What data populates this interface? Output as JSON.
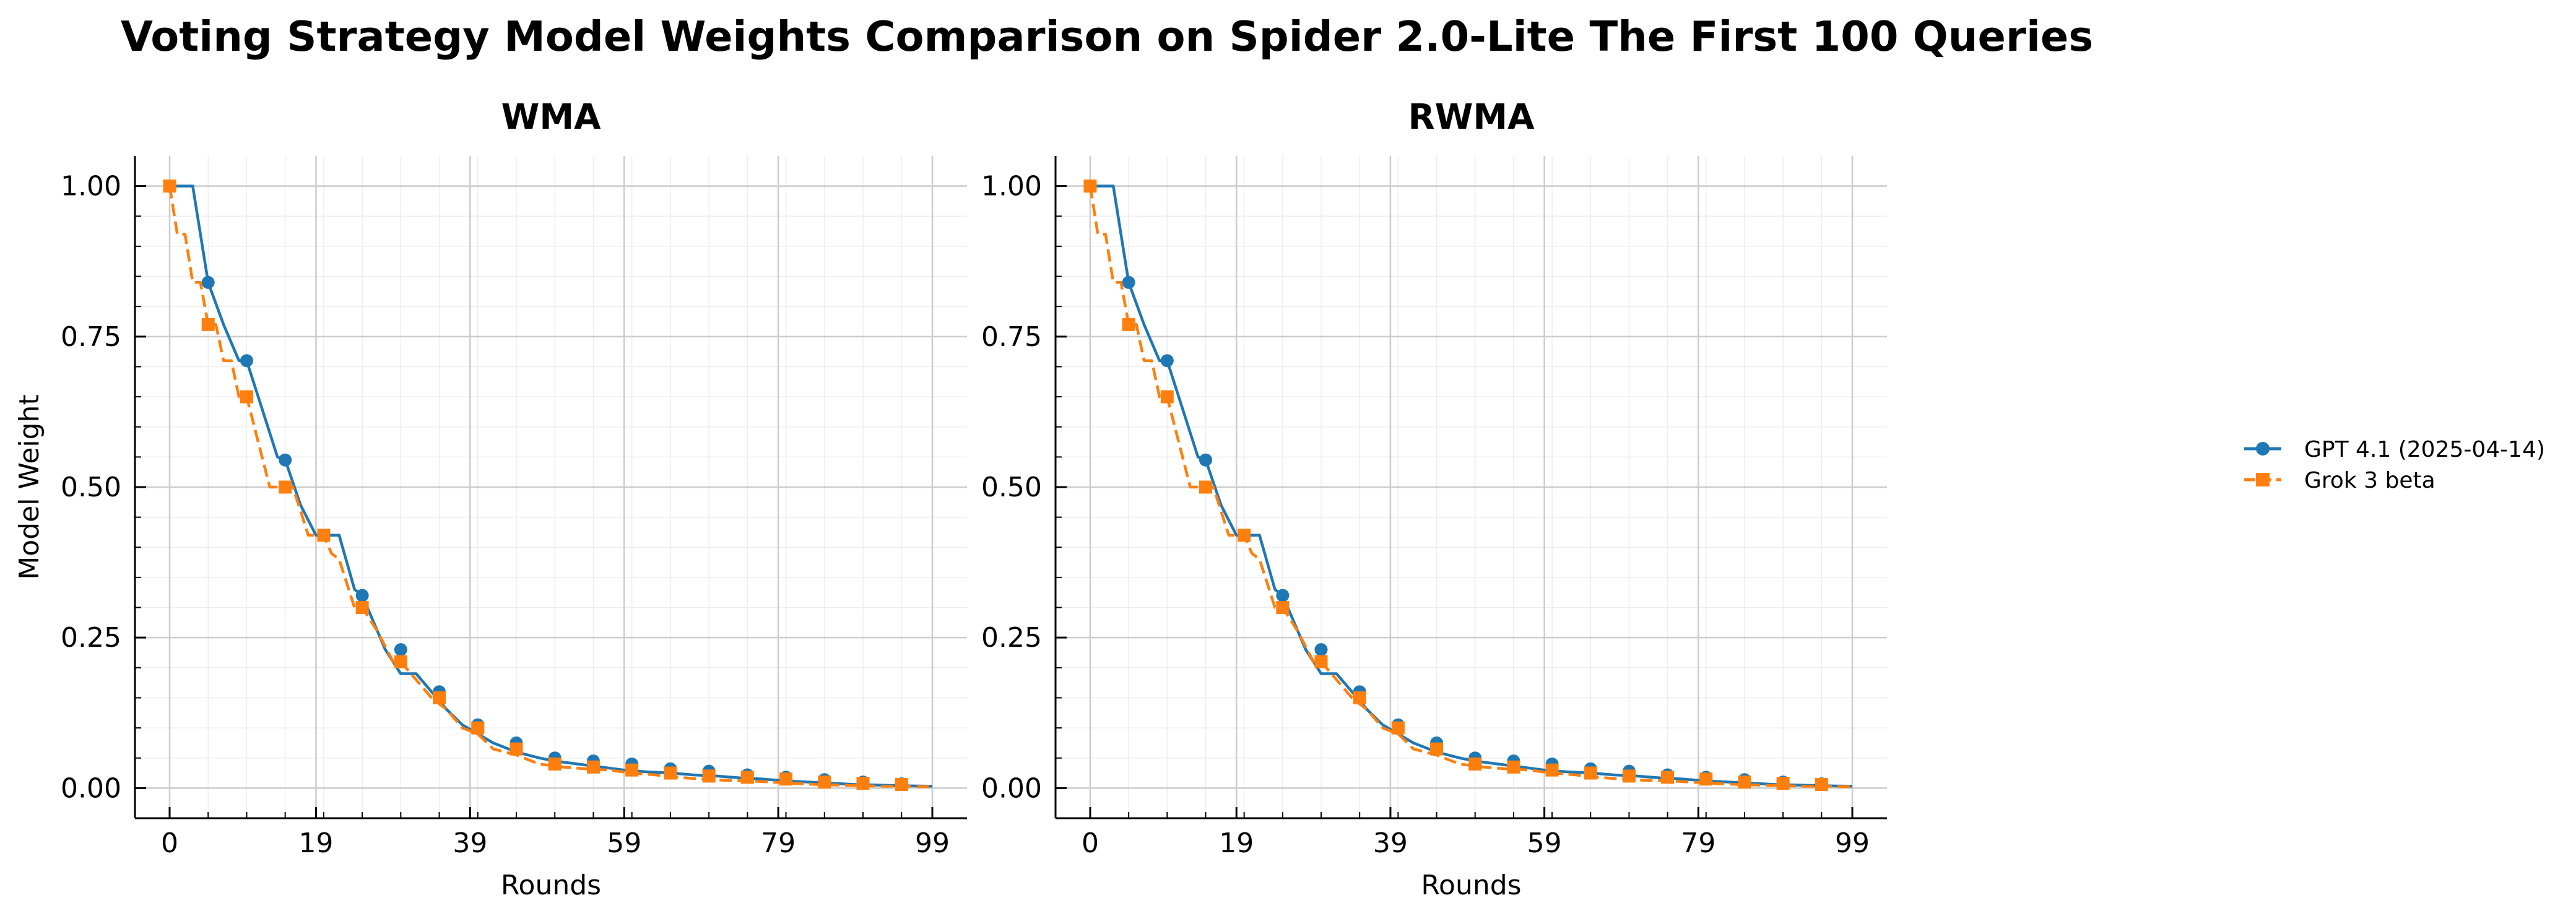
{
  "title": "Voting Strategy Model Weights Comparison on Spider 2.0-Lite The First 100 Queries",
  "ylabel": "Model Weight",
  "xlabel": "Rounds",
  "xticks": [
    0,
    19,
    39,
    59,
    79,
    99
  ],
  "yticks": [
    "0.00",
    "0.25",
    "0.50",
    "0.75",
    "1.00"
  ],
  "xlim": [
    -4.5,
    103.5
  ],
  "ylim": [
    -0.05,
    1.05
  ],
  "legend": [
    {
      "label": "GPT 4.1 (2025-04-14)",
      "color": "#1f77b4",
      "marker": "circle",
      "linestyle": "solid"
    },
    {
      "label": "Grok 3 beta",
      "color": "#ff7f0e",
      "marker": "square",
      "linestyle": "dashed"
    }
  ],
  "chart_data": [
    {
      "type": "line",
      "title": "WMA",
      "xlabel": "Rounds",
      "ylabel": "Model Weight",
      "xlim": [
        -4.5,
        103.5
      ],
      "ylim": [
        -0.05,
        1.05
      ],
      "series": [
        {
          "name": "GPT 4.1 (2025-04-14)",
          "x": [
            0,
            3,
            5,
            7,
            9,
            10,
            12,
            14,
            15,
            17,
            19,
            20,
            22,
            24,
            25,
            28,
            30,
            32,
            34,
            36,
            38,
            40,
            42,
            45,
            48,
            50,
            53,
            56,
            59,
            62,
            65,
            68,
            71,
            74,
            77,
            80,
            83,
            86,
            89,
            92,
            95,
            99
          ],
          "y": [
            1.0,
            1.0,
            0.84,
            0.77,
            0.71,
            0.71,
            0.63,
            0.55,
            0.545,
            0.47,
            0.42,
            0.42,
            0.42,
            0.33,
            0.32,
            0.23,
            0.19,
            0.19,
            0.16,
            0.13,
            0.105,
            0.09,
            0.075,
            0.06,
            0.05,
            0.045,
            0.04,
            0.035,
            0.03,
            0.027,
            0.025,
            0.022,
            0.02,
            0.017,
            0.015,
            0.012,
            0.01,
            0.008,
            0.006,
            0.005,
            0.004,
            0.003
          ],
          "markers_x": [
            5,
            10,
            15,
            20,
            25,
            30,
            35,
            40,
            45,
            50,
            55,
            60,
            65,
            70,
            75,
            80,
            85,
            90,
            95
          ],
          "markers_y": [
            0.84,
            0.71,
            0.545,
            0.42,
            0.32,
            0.23,
            0.16,
            0.105,
            0.075,
            0.05,
            0.045,
            0.04,
            0.032,
            0.028,
            0.022,
            0.018,
            0.014,
            0.01,
            0.007
          ]
        },
        {
          "name": "Grok 3 beta",
          "x": [
            0,
            1,
            2,
            3,
            4,
            5,
            6,
            7,
            8,
            9,
            10,
            11,
            12,
            13,
            14,
            15,
            16,
            17,
            18,
            19,
            20,
            21,
            22,
            23,
            24,
            25,
            27,
            29,
            30,
            32,
            34,
            36,
            38,
            40,
            42,
            45,
            48,
            51,
            54,
            57,
            60,
            63,
            66,
            69,
            72,
            75,
            78,
            81,
            84,
            87,
            90,
            93,
            96,
            99
          ],
          "y": [
            1.0,
            0.92,
            0.92,
            0.84,
            0.84,
            0.77,
            0.77,
            0.71,
            0.71,
            0.65,
            0.65,
            0.6,
            0.55,
            0.5,
            0.5,
            0.5,
            0.5,
            0.46,
            0.42,
            0.42,
            0.42,
            0.39,
            0.38,
            0.34,
            0.3,
            0.3,
            0.26,
            0.21,
            0.21,
            0.18,
            0.15,
            0.13,
            0.1,
            0.09,
            0.065,
            0.055,
            0.04,
            0.035,
            0.032,
            0.03,
            0.025,
            0.022,
            0.018,
            0.015,
            0.013,
            0.012,
            0.01,
            0.008,
            0.006,
            0.005,
            0.004,
            0.003,
            0.003,
            0.002
          ],
          "markers_x": [
            0,
            5,
            10,
            15,
            20,
            25,
            30,
            35,
            40,
            45,
            50,
            55,
            60,
            65,
            70,
            75,
            80,
            85,
            90,
            95
          ],
          "markers_y": [
            1.0,
            0.77,
            0.65,
            0.5,
            0.42,
            0.3,
            0.21,
            0.15,
            0.1,
            0.065,
            0.04,
            0.035,
            0.03,
            0.025,
            0.02,
            0.018,
            0.015,
            0.01,
            0.008,
            0.006
          ]
        }
      ]
    },
    {
      "type": "line",
      "title": "RWMA",
      "xlabel": "Rounds",
      "ylabel": "",
      "xlim": [
        -4.5,
        103.5
      ],
      "ylim": [
        -0.05,
        1.05
      ],
      "series": [
        {
          "name": "GPT 4.1 (2025-04-14)",
          "x": [
            0,
            3,
            5,
            7,
            9,
            10,
            12,
            14,
            15,
            17,
            19,
            20,
            22,
            24,
            25,
            28,
            30,
            32,
            34,
            36,
            38,
            40,
            42,
            45,
            48,
            50,
            53,
            56,
            59,
            62,
            65,
            68,
            71,
            74,
            77,
            80,
            83,
            86,
            89,
            92,
            95,
            99
          ],
          "y": [
            1.0,
            1.0,
            0.84,
            0.77,
            0.71,
            0.71,
            0.63,
            0.55,
            0.545,
            0.47,
            0.42,
            0.42,
            0.42,
            0.33,
            0.32,
            0.23,
            0.19,
            0.19,
            0.16,
            0.13,
            0.105,
            0.09,
            0.075,
            0.06,
            0.05,
            0.045,
            0.04,
            0.035,
            0.03,
            0.027,
            0.025,
            0.022,
            0.02,
            0.017,
            0.015,
            0.012,
            0.01,
            0.008,
            0.006,
            0.005,
            0.004,
            0.003
          ],
          "markers_x": [
            5,
            10,
            15,
            20,
            25,
            30,
            35,
            40,
            45,
            50,
            55,
            60,
            65,
            70,
            75,
            80,
            85,
            90,
            95
          ],
          "markers_y": [
            0.84,
            0.71,
            0.545,
            0.42,
            0.32,
            0.23,
            0.16,
            0.105,
            0.075,
            0.05,
            0.045,
            0.04,
            0.032,
            0.028,
            0.022,
            0.018,
            0.014,
            0.01,
            0.007
          ]
        },
        {
          "name": "Grok 3 beta",
          "x": [
            0,
            1,
            2,
            3,
            4,
            5,
            6,
            7,
            8,
            9,
            10,
            11,
            12,
            13,
            14,
            15,
            16,
            17,
            18,
            19,
            20,
            21,
            22,
            23,
            24,
            25,
            27,
            29,
            30,
            32,
            34,
            36,
            38,
            40,
            42,
            45,
            48,
            51,
            54,
            57,
            60,
            63,
            66,
            69,
            72,
            75,
            78,
            81,
            84,
            87,
            90,
            93,
            96,
            99
          ],
          "y": [
            1.0,
            0.92,
            0.92,
            0.84,
            0.84,
            0.77,
            0.77,
            0.71,
            0.71,
            0.65,
            0.65,
            0.6,
            0.55,
            0.5,
            0.5,
            0.5,
            0.5,
            0.46,
            0.42,
            0.42,
            0.42,
            0.39,
            0.38,
            0.34,
            0.3,
            0.3,
            0.26,
            0.21,
            0.21,
            0.18,
            0.15,
            0.13,
            0.1,
            0.09,
            0.065,
            0.055,
            0.04,
            0.035,
            0.032,
            0.03,
            0.025,
            0.022,
            0.018,
            0.015,
            0.013,
            0.012,
            0.01,
            0.008,
            0.006,
            0.005,
            0.004,
            0.003,
            0.003,
            0.002
          ],
          "markers_x": [
            0,
            5,
            10,
            15,
            20,
            25,
            30,
            35,
            40,
            45,
            50,
            55,
            60,
            65,
            70,
            75,
            80,
            85,
            90,
            95
          ],
          "markers_y": [
            1.0,
            0.77,
            0.65,
            0.5,
            0.42,
            0.3,
            0.21,
            0.15,
            0.1,
            0.065,
            0.04,
            0.035,
            0.03,
            0.025,
            0.02,
            0.018,
            0.015,
            0.01,
            0.008,
            0.006
          ]
        }
      ]
    }
  ]
}
